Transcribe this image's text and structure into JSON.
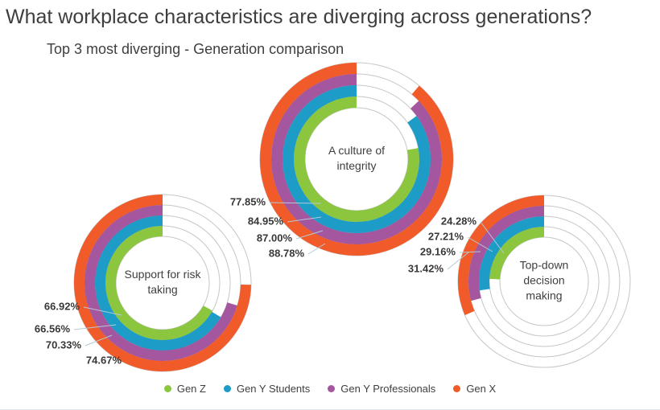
{
  "page": {
    "title": "What workplace characteristics are diverging across generations?",
    "subtitle": "Top 3 most diverging - Generation comparison"
  },
  "legend": {
    "items": [
      {
        "label": "Gen Z",
        "color": "#8CC63F"
      },
      {
        "label": "Gen Y Students",
        "color": "#1D9CC8"
      },
      {
        "label": "Gen Y Professionals",
        "color": "#A4569F"
      },
      {
        "label": "Gen X",
        "color": "#F15A29"
      }
    ]
  },
  "chart_data": {
    "type": "concentric-donut-multiples",
    "unit": "%",
    "value_format": "0.00%",
    "series_order_inner_to_outer": [
      "Gen Z",
      "Gen Y Students",
      "Gen Y Professionals",
      "Gen X"
    ],
    "series_colors": {
      "Gen Z": "#8CC63F",
      "Gen Y Students": "#1D9CC8",
      "Gen Y Professionals": "#A4569F",
      "Gen X": "#F15A29"
    },
    "arc_start": "fills end at 12 o'clock, drawn clockwise",
    "charts": [
      {
        "id": "integrity",
        "title": "A culture of integrity",
        "title_lines": [
          "A culture of",
          "integrity"
        ],
        "values": [
          77.85,
          84.95,
          87.0,
          88.78
        ],
        "value_labels": [
          "77.85%",
          "84.95%",
          "87.00%",
          "88.78%"
        ]
      },
      {
        "id": "risk-taking",
        "title": "Support for risk taking",
        "title_lines": [
          "Support for risk",
          "taking"
        ],
        "values": [
          66.92,
          66.56,
          70.33,
          74.67
        ],
        "value_labels": [
          "66.92%",
          "66.56%",
          "70.33%",
          "74.67%"
        ]
      },
      {
        "id": "top-down",
        "title": "Top-down decision making",
        "title_lines": [
          "Top-down",
          "decision",
          "making"
        ],
        "values": [
          24.28,
          27.21,
          29.16,
          31.42
        ],
        "value_labels": [
          "24.28%",
          "27.21%",
          "29.16%",
          "31.42%"
        ]
      }
    ]
  }
}
